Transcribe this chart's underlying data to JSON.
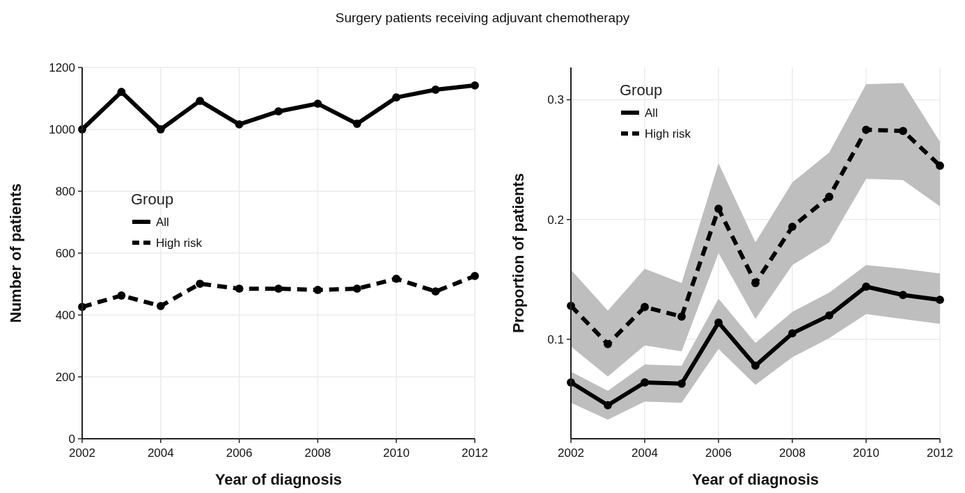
{
  "chart_data": [
    {
      "type": "line",
      "title": "Surgery patients receiving adjuvant chemotherapy",
      "xlabel": "Year of diagnosis",
      "ylabel": "Number of patients",
      "legend_title": "Group",
      "legend": "center left",
      "grid": true,
      "marker": "circle",
      "x": [
        2002,
        2003,
        2004,
        2005,
        2006,
        2007,
        2008,
        2009,
        2010,
        2011,
        2012
      ],
      "xlim": [
        2002,
        2012
      ],
      "xticks": [
        2002,
        2004,
        2006,
        2008,
        2010,
        2012
      ],
      "ylim": [
        0,
        1200
      ],
      "yticks": [
        0,
        200,
        400,
        600,
        800,
        1000,
        1200
      ],
      "series": [
        {
          "name": "All",
          "color": "#000000",
          "line_style": "solid",
          "values": [
            1000,
            1121,
            1000,
            1092,
            1016,
            1058,
            1083,
            1018,
            1103,
            1128,
            1142
          ]
        },
        {
          "name": "High risk",
          "color": "#000000",
          "line_style": "dashed",
          "values": [
            426,
            463,
            429,
            501,
            485,
            485,
            481,
            485,
            517,
            476,
            526
          ]
        }
      ]
    },
    {
      "type": "line",
      "xlabel": "Year of diagnosis",
      "ylabel": "Proportion of patients",
      "legend_title": "Group",
      "legend": "top left",
      "grid": true,
      "marker": "circle",
      "x": [
        2002,
        2003,
        2004,
        2005,
        2006,
        2007,
        2008,
        2009,
        2010,
        2011,
        2012
      ],
      "xlim": [
        2002,
        2012
      ],
      "xticks": [
        2002,
        2004,
        2006,
        2008,
        2010,
        2012
      ],
      "ylim": [
        0.017,
        0.327
      ],
      "yticks": [
        0.1,
        0.2,
        0.3
      ],
      "series": [
        {
          "name": "All",
          "color": "#000000",
          "line_style": "solid",
          "values": [
            0.064,
            0.045,
            0.064,
            0.063,
            0.114,
            0.078,
            0.105,
            0.12,
            0.144,
            0.137,
            0.133
          ],
          "lower": [
            0.047,
            0.033,
            0.048,
            0.047,
            0.092,
            0.062,
            0.085,
            0.101,
            0.121,
            0.117,
            0.113
          ],
          "upper": [
            0.073,
            0.057,
            0.079,
            0.078,
            0.134,
            0.097,
            0.123,
            0.139,
            0.162,
            0.159,
            0.155
          ]
        },
        {
          "name": "High risk",
          "color": "#000000",
          "line_style": "dashed",
          "values": [
            0.128,
            0.096,
            0.127,
            0.119,
            0.209,
            0.147,
            0.194,
            0.219,
            0.275,
            0.274,
            0.245
          ],
          "lower": [
            0.094,
            0.069,
            0.095,
            0.09,
            0.172,
            0.117,
            0.162,
            0.181,
            0.234,
            0.233,
            0.211
          ],
          "upper": [
            0.158,
            0.124,
            0.159,
            0.147,
            0.247,
            0.181,
            0.231,
            0.256,
            0.313,
            0.314,
            0.265
          ]
        }
      ]
    }
  ]
}
